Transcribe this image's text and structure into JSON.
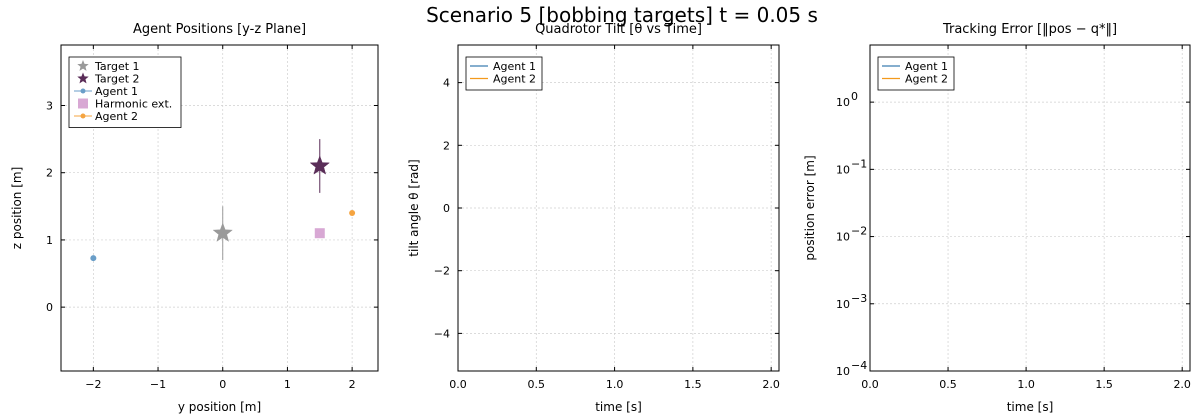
{
  "suptitle": "Scenario 5 [bobbing targets]  t = 0.05 s",
  "colors": {
    "target1": "#9a9a9a",
    "target2": "#5a2d58",
    "agent1": "#6a9ec8",
    "harmonic": "#d8a8d4",
    "agent2": "#f5a440",
    "line_agent1": "#3c7eb0",
    "line_agent2": "#f39a1c"
  },
  "chart_data": [
    {
      "type": "scatter",
      "title": "Agent Positions [y-z Plane]",
      "xlabel": "y position [m]",
      "ylabel": "z position [m]",
      "xlim": [
        -2.5,
        2.4
      ],
      "ylim": [
        -0.95,
        3.9
      ],
      "xticks": [
        -2,
        -1,
        0,
        1,
        2
      ],
      "xtick_labels": [
        "−2",
        "−1",
        "0",
        "1",
        "2"
      ],
      "yticks": [
        0,
        1,
        2,
        3
      ],
      "ytick_labels": [
        "0",
        "1",
        "2",
        "3"
      ],
      "grid": true,
      "legend_position": "top-left",
      "series": [
        {
          "name": "Target 1",
          "marker": "star",
          "color_key": "target1",
          "points": [
            {
              "x": 0.0,
              "y": 1.1
            }
          ],
          "error_z": 0.4
        },
        {
          "name": "Target 2",
          "marker": "star",
          "color_key": "target2",
          "points": [
            {
              "x": 1.5,
              "y": 2.1
            }
          ],
          "error_z": 0.4
        },
        {
          "name": "Agent 1",
          "marker": "circle-line",
          "color_key": "agent1",
          "points": [
            {
              "x": -2.0,
              "y": 0.73
            }
          ]
        },
        {
          "name": "Harmonic ext.",
          "marker": "square",
          "color_key": "harmonic",
          "points": [
            {
              "x": 1.5,
              "y": 1.1
            }
          ]
        },
        {
          "name": "Agent 2",
          "marker": "circle-line",
          "color_key": "agent2",
          "points": [
            {
              "x": 2.0,
              "y": 1.4
            }
          ]
        }
      ]
    },
    {
      "type": "line",
      "title": "Quadrotor Tilt [θ vs Time]",
      "xlabel": "time [s]",
      "ylabel": "tilt angle θ [rad]",
      "xlim": [
        0,
        2.05
      ],
      "ylim": [
        -5.2,
        5.2
      ],
      "xticks": [
        0,
        0.5,
        1,
        1.5,
        2
      ],
      "xtick_labels": [
        "0.0",
        "0.5",
        "1.0",
        "1.5",
        "2.0"
      ],
      "yticks": [
        -4,
        -2,
        0,
        2,
        4
      ],
      "ytick_labels": [
        "−4",
        "−2",
        "0",
        "2",
        "4"
      ],
      "grid": true,
      "legend_position": "top-left",
      "series": [
        {
          "name": "Agent 1",
          "color_key": "line_agent1",
          "values": []
        },
        {
          "name": "Agent 2",
          "color_key": "line_agent2",
          "values": []
        }
      ]
    },
    {
      "type": "line",
      "title": "Tracking Error [‖pos − q*‖]",
      "xlabel": "time [s]",
      "ylabel": "position error [m]",
      "log_y": true,
      "xlim": [
        0,
        2.05
      ],
      "ylim_log10": [
        -4,
        0.85
      ],
      "xticks": [
        0,
        0.5,
        1,
        1.5,
        2
      ],
      "xtick_labels": [
        "0.0",
        "0.5",
        "1.0",
        "1.5",
        "2.0"
      ],
      "yticks_log10": [
        -4,
        -3,
        -2,
        -1,
        0
      ],
      "ytick_exponents": [
        "−4",
        "−3",
        "−2",
        "−1",
        "0"
      ],
      "ytick_base": "10",
      "grid": true,
      "legend_position": "top-left",
      "series": [
        {
          "name": "Agent 1",
          "color_key": "line_agent1",
          "values": []
        },
        {
          "name": "Agent 2",
          "color_key": "line_agent2",
          "values": []
        }
      ]
    }
  ]
}
